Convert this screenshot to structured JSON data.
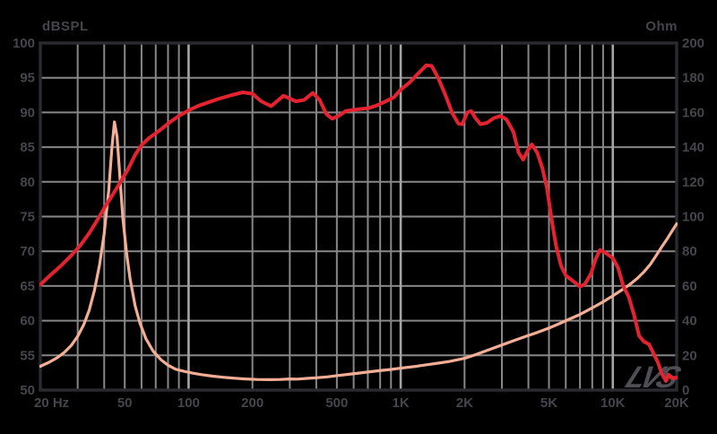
{
  "watermark": {
    "text": "LVS"
  },
  "colors": {
    "background": "#000000",
    "frame": "#2b2b2f",
    "grid_minor": "#878787",
    "grid_major": "#a5a5a5",
    "label": "#45454b",
    "spl_curve": "#e52330",
    "impedance_curve": "#f5ae96"
  },
  "chart_data": {
    "type": "line",
    "title": "",
    "legend": "none",
    "grid": true,
    "x_axis": {
      "scale": "log",
      "unit": "Hz",
      "min": 20,
      "max": 20000,
      "tick_values": [
        20,
        50,
        100,
        200,
        500,
        1000,
        2000,
        5000,
        10000,
        20000
      ],
      "tick_labels": [
        "20 Hz",
        "50",
        "100",
        "200",
        "500",
        "1K",
        "2K",
        "5K",
        "10K",
        "20K"
      ],
      "minor_gridlines": [
        30,
        40,
        50,
        60,
        70,
        80,
        90,
        200,
        300,
        400,
        500,
        600,
        700,
        800,
        900,
        2000,
        3000,
        4000,
        5000,
        6000,
        7000,
        8000,
        9000
      ],
      "major_gridlines": [
        100,
        1000,
        10000
      ]
    },
    "y_left": {
      "label": "dBSPL",
      "min": 50,
      "max": 100,
      "step": 5,
      "ticks": [
        100,
        95,
        90,
        85,
        80,
        75,
        70,
        65,
        60,
        55,
        50
      ]
    },
    "y_right": {
      "label": "Ohm",
      "min": 0,
      "max": 200,
      "step": 20,
      "ticks": [
        200,
        180,
        160,
        140,
        120,
        100,
        80,
        60,
        40,
        20,
        0
      ]
    },
    "series": [
      {
        "name": "SPL",
        "axis": "left",
        "color_key": "spl_curve",
        "stroke_width": 4,
        "points": [
          [
            20,
            65.2
          ],
          [
            22,
            66.4
          ],
          [
            25,
            67.9
          ],
          [
            28,
            69.4
          ],
          [
            31,
            70.9
          ],
          [
            34,
            72.6
          ],
          [
            37,
            74.4
          ],
          [
            40,
            76.2
          ],
          [
            44,
            78.2
          ],
          [
            48,
            80.1
          ],
          [
            52,
            81.9
          ],
          [
            56,
            83.9
          ],
          [
            60,
            85.3
          ],
          [
            65,
            86.3
          ],
          [
            70,
            87.0
          ],
          [
            75,
            87.7
          ],
          [
            80,
            88.4
          ],
          [
            90,
            89.5
          ],
          [
            100,
            90.3
          ],
          [
            112,
            91.0
          ],
          [
            125,
            91.5
          ],
          [
            140,
            92.0
          ],
          [
            160,
            92.5
          ],
          [
            180,
            92.9
          ],
          [
            200,
            92.7
          ],
          [
            220,
            91.6
          ],
          [
            245,
            90.9
          ],
          [
            280,
            92.4
          ],
          [
            320,
            91.6
          ],
          [
            350,
            91.8
          ],
          [
            385,
            92.8
          ],
          [
            415,
            91.8
          ],
          [
            445,
            89.8
          ],
          [
            475,
            89.1
          ],
          [
            510,
            89.5
          ],
          [
            550,
            90.2
          ],
          [
            610,
            90.4
          ],
          [
            700,
            90.6
          ],
          [
            770,
            91.0
          ],
          [
            850,
            91.6
          ],
          [
            930,
            92.2
          ],
          [
            1000,
            93.3
          ],
          [
            1100,
            94.3
          ],
          [
            1200,
            95.5
          ],
          [
            1320,
            96.8
          ],
          [
            1400,
            96.7
          ],
          [
            1500,
            95.0
          ],
          [
            1620,
            92.6
          ],
          [
            1750,
            89.9
          ],
          [
            1870,
            88.4
          ],
          [
            1950,
            88.3
          ],
          [
            2060,
            90.0
          ],
          [
            2150,
            90.2
          ],
          [
            2250,
            89.2
          ],
          [
            2380,
            88.3
          ],
          [
            2550,
            88.5
          ],
          [
            2750,
            89.2
          ],
          [
            2950,
            89.5
          ],
          [
            3150,
            89.0
          ],
          [
            3400,
            87.2
          ],
          [
            3600,
            84.2
          ],
          [
            3780,
            83.2
          ],
          [
            3950,
            84.4
          ],
          [
            4150,
            85.4
          ],
          [
            4400,
            84.2
          ],
          [
            4650,
            82.0
          ],
          [
            4900,
            79.0
          ],
          [
            5150,
            74.5
          ],
          [
            5400,
            70.8
          ],
          [
            5700,
            67.9
          ],
          [
            6000,
            66.5
          ],
          [
            6500,
            65.7
          ],
          [
            7000,
            64.9
          ],
          [
            7400,
            65.3
          ],
          [
            7900,
            66.8
          ],
          [
            8300,
            68.9
          ],
          [
            8700,
            70.2
          ],
          [
            9300,
            69.7
          ],
          [
            10000,
            69.0
          ],
          [
            10600,
            67.6
          ],
          [
            11200,
            65.0
          ],
          [
            11900,
            63.4
          ],
          [
            12600,
            60.8
          ],
          [
            13300,
            57.8
          ],
          [
            14000,
            57.0
          ],
          [
            14800,
            56.6
          ],
          [
            15600,
            55.2
          ],
          [
            16300,
            54.0
          ],
          [
            17000,
            52.4
          ],
          [
            17800,
            51.3
          ],
          [
            18400,
            52.2
          ],
          [
            19100,
            51.7
          ],
          [
            20000,
            51.8
          ]
        ]
      },
      {
        "name": "Impedance",
        "axis": "right",
        "color_key": "impedance_curve",
        "stroke_width": 3.2,
        "points": [
          [
            20,
            13.7
          ],
          [
            22,
            16.0
          ],
          [
            24,
            18.6
          ],
          [
            26,
            21.8
          ],
          [
            28,
            25.8
          ],
          [
            30,
            31.0
          ],
          [
            32,
            37.5
          ],
          [
            34,
            46.0
          ],
          [
            36,
            57.5
          ],
          [
            38,
            72.0
          ],
          [
            40,
            90.0
          ],
          [
            42,
            115.0
          ],
          [
            43.5,
            140.0
          ],
          [
            44.7,
            154.5
          ],
          [
            46,
            146.0
          ],
          [
            47.5,
            122.0
          ],
          [
            49,
            99.0
          ],
          [
            51,
            79.0
          ],
          [
            53,
            64.0
          ],
          [
            56,
            48.5
          ],
          [
            59,
            38.5
          ],
          [
            63,
            29.5
          ],
          [
            68,
            22.5
          ],
          [
            74,
            17.5
          ],
          [
            80,
            14.3
          ],
          [
            87,
            12.0
          ],
          [
            95,
            10.8
          ],
          [
            105,
            9.7
          ],
          [
            115,
            8.9
          ],
          [
            130,
            8.0
          ],
          [
            145,
            7.4
          ],
          [
            165,
            6.8
          ],
          [
            185,
            6.4
          ],
          [
            210,
            6.1
          ],
          [
            240,
            6.0
          ],
          [
            270,
            6.1
          ],
          [
            300,
            6.4
          ],
          [
            325,
            6.3
          ],
          [
            360,
            6.7
          ],
          [
            400,
            7.1
          ],
          [
            450,
            7.6
          ],
          [
            510,
            8.4
          ],
          [
            570,
            9.1
          ],
          [
            640,
            9.8
          ],
          [
            720,
            10.6
          ],
          [
            810,
            11.3
          ],
          [
            900,
            11.9
          ],
          [
            1000,
            12.6
          ],
          [
            1150,
            13.5
          ],
          [
            1300,
            14.4
          ],
          [
            1500,
            15.5
          ],
          [
            1700,
            16.5
          ],
          [
            2000,
            18.3
          ],
          [
            2300,
            20.8
          ],
          [
            2600,
            23.2
          ],
          [
            3000,
            26.0
          ],
          [
            3400,
            28.4
          ],
          [
            3900,
            31.0
          ],
          [
            4400,
            33.2
          ],
          [
            5000,
            35.7
          ],
          [
            5600,
            38.3
          ],
          [
            6200,
            40.7
          ],
          [
            6900,
            43.2
          ],
          [
            7600,
            45.9
          ],
          [
            8400,
            48.8
          ],
          [
            9200,
            51.6
          ],
          [
            10000,
            54.3
          ],
          [
            11000,
            57.6
          ],
          [
            12000,
            60.8
          ],
          [
            13000,
            64.2
          ],
          [
            14000,
            68.0
          ],
          [
            15000,
            72.3
          ],
          [
            16000,
            77.5
          ],
          [
            17000,
            82.5
          ],
          [
            18000,
            87.0
          ],
          [
            19000,
            91.5
          ],
          [
            20000,
            95.8
          ]
        ]
      }
    ]
  }
}
